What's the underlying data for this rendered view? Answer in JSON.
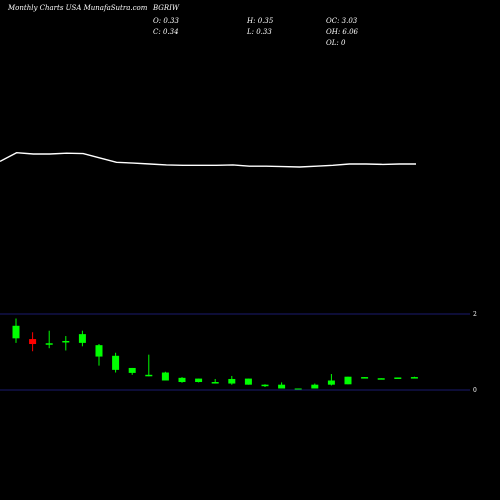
{
  "header": {
    "site": "Monthly Charts USA  MunafaSutra.com",
    "symbol": "BGRIW",
    "open": "O: 0.33",
    "high": "H: 0.35",
    "close": "C: 0.34",
    "low": "L: 0.33",
    "oc": "OC: 3.03",
    "oh": "OH: 6.06",
    "ol": "OL: 0"
  },
  "colors": {
    "background": "#000000",
    "up": "#00ff00",
    "down": "#ff0000",
    "line": "#ffffff",
    "axis": "#1a1a6e"
  },
  "chart_data": [
    {
      "type": "line",
      "title": "",
      "xlabel": "",
      "ylabel": "",
      "grid": false,
      "x": [
        0,
        1,
        2,
        3,
        4,
        5,
        6,
        7,
        8,
        9,
        10,
        11,
        12,
        13,
        14,
        15,
        16,
        17,
        18,
        19,
        20,
        21,
        22,
        23,
        24,
        25
      ],
      "y": [
        0.66,
        0.86,
        0.83,
        0.83,
        0.85,
        0.84,
        0.74,
        0.64,
        0.62,
        0.6,
        0.58,
        0.57,
        0.57,
        0.57,
        0.58,
        0.55,
        0.55,
        0.54,
        0.53,
        0.55,
        0.57,
        0.6,
        0.6,
        0.59,
        0.6,
        0.6
      ],
      "ylim": [
        0,
        3
      ]
    },
    {
      "type": "candlestick",
      "title": "",
      "xlabel": "",
      "ylabel": "",
      "ylim": [
        0,
        2
      ],
      "yticks": [
        {
          "value": 2,
          "label": "2"
        },
        {
          "value": 0,
          "label": "0"
        }
      ],
      "candles": [
        {
          "o": 1.36,
          "h": 1.88,
          "l": 1.24,
          "c": 1.69
        },
        {
          "o": 1.34,
          "h": 1.52,
          "l": 1.02,
          "c": 1.21
        },
        {
          "o": 1.23,
          "h": 1.56,
          "l": 1.1,
          "c": 1.23
        },
        {
          "o": 1.26,
          "h": 1.42,
          "l": 1.04,
          "c": 1.29
        },
        {
          "o": 1.24,
          "h": 1.56,
          "l": 1.15,
          "c": 1.47
        },
        {
          "o": 0.88,
          "h": 1.21,
          "l": 0.64,
          "c": 1.18
        },
        {
          "o": 0.53,
          "h": 0.98,
          "l": 0.46,
          "c": 0.9
        },
        {
          "o": 0.45,
          "h": 0.58,
          "l": 0.4,
          "c": 0.58
        },
        {
          "o": 0.38,
          "h": 0.93,
          "l": 0.36,
          "c": 0.4
        },
        {
          "o": 0.25,
          "h": 0.48,
          "l": 0.25,
          "c": 0.46
        },
        {
          "o": 0.21,
          "h": 0.34,
          "l": 0.19,
          "c": 0.32
        },
        {
          "o": 0.21,
          "h": 0.3,
          "l": 0.2,
          "c": 0.3
        },
        {
          "o": 0.17,
          "h": 0.29,
          "l": 0.17,
          "c": 0.21
        },
        {
          "o": 0.17,
          "h": 0.37,
          "l": 0.14,
          "c": 0.29
        },
        {
          "o": 0.14,
          "h": 0.3,
          "l": 0.14,
          "c": 0.3
        },
        {
          "o": 0.1,
          "h": 0.15,
          "l": 0.08,
          "c": 0.14
        },
        {
          "o": 0.04,
          "h": 0.2,
          "l": 0.04,
          "c": 0.14
        },
        {
          "o": 0.02,
          "h": 0.04,
          "l": 0.02,
          "c": 0.04
        },
        {
          "o": 0.04,
          "h": 0.17,
          "l": 0.04,
          "c": 0.14
        },
        {
          "o": 0.14,
          "h": 0.42,
          "l": 0.12,
          "c": 0.25
        },
        {
          "o": 0.15,
          "h": 0.35,
          "l": 0.15,
          "c": 0.35
        },
        {
          "o": 0.33,
          "h": 0.34,
          "l": 0.33,
          "c": 0.34
        },
        {
          "o": 0.3,
          "h": 0.31,
          "l": 0.3,
          "c": 0.31
        },
        {
          "o": 0.32,
          "h": 0.33,
          "l": 0.32,
          "c": 0.33
        },
        {
          "o": 0.33,
          "h": 0.35,
          "l": 0.33,
          "c": 0.34
        }
      ]
    }
  ]
}
